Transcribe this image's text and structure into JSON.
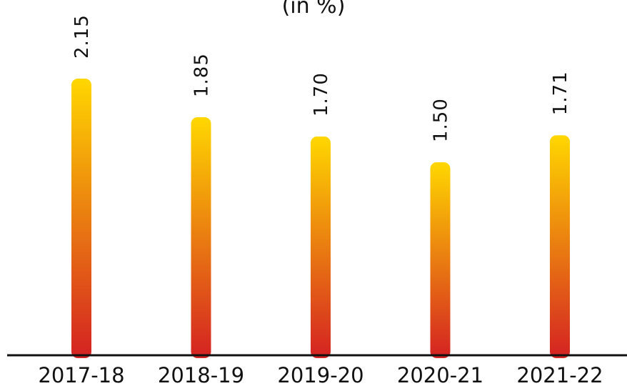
{
  "chart_data": {
    "type": "bar",
    "title": "",
    "subtitle": "(in %)",
    "xlabel": "",
    "ylabel": "",
    "categories": [
      "2017-18",
      "2018-19",
      "2019-20",
      "2020-21",
      "2021-22"
    ],
    "values": [
      2.15,
      1.85,
      1.7,
      1.5,
      1.71
    ],
    "value_labels": [
      "2.15",
      "1.85",
      "1.70",
      "1.50",
      "1.71"
    ],
    "ylim": [
      0,
      2.15
    ],
    "grid": false,
    "legend": "none",
    "colors": {
      "bar_top": "#FFD700",
      "bar_bottom": "#D42222",
      "axis": "#111111",
      "text": "#111111"
    }
  }
}
